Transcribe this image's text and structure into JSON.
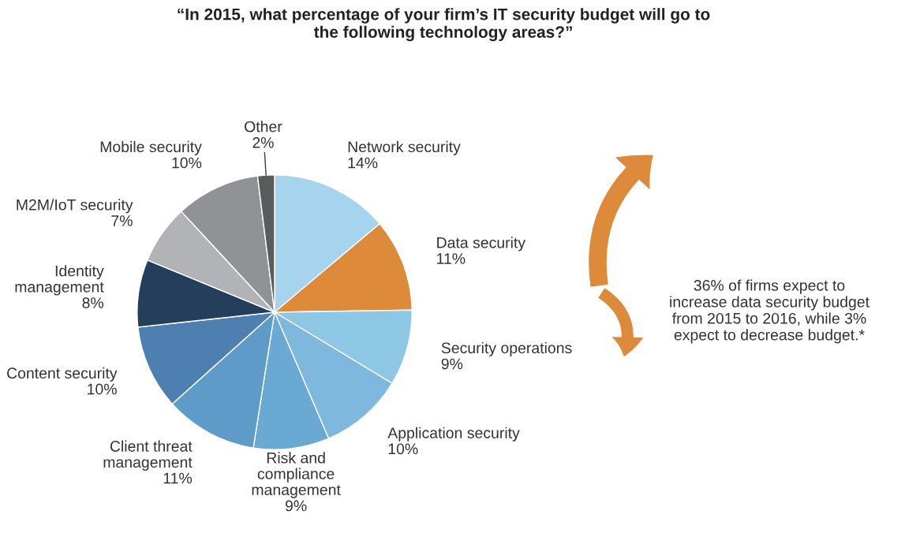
{
  "chart_data": {
    "type": "pie",
    "title": "“In 2015, what percentage of your firm’s IT security budget will go to\nthe following technology areas?”",
    "categories": [
      "Network security",
      "Data security",
      "Security operations",
      "Application security",
      "Risk and\ncompliance\nmanagement",
      "Client threat\nmanagement",
      "Content security",
      "Identity\nmanagement",
      "M2M/IoT security",
      "Mobile security",
      "Other"
    ],
    "values": [
      14,
      11,
      9,
      10,
      9,
      11,
      10,
      8,
      7,
      10,
      2
    ],
    "value_labels": [
      "14%",
      "11%",
      "9%",
      "10%",
      "9%",
      "11%",
      "10%",
      "8%",
      "7%",
      "10%",
      "2%"
    ],
    "colors": [
      "#a6d4ee",
      "#dd8a3a",
      "#8ec6e6",
      "#7fb8df",
      "#6aa9d3",
      "#5e9bc9",
      "#4d7fb0",
      "#253e5c",
      "#b1b3b6",
      "#909295",
      "#5a5b5d"
    ],
    "annotations": [
      "36% of firms expect to\nincrease data security budget\nfrom 2015 to 2016, while 3%\nexpect to decrease budget.*"
    ]
  }
}
